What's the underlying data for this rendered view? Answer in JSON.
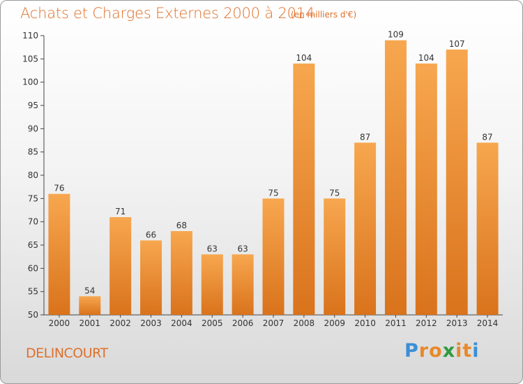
{
  "chart_data": {
    "type": "bar",
    "title": "Achats et Charges Externes 2000 à 2014",
    "subtitle": "(en milliers d'€)",
    "categories": [
      "2000",
      "2001",
      "2002",
      "2003",
      "2004",
      "2005",
      "2006",
      "2007",
      "2008",
      "2009",
      "2010",
      "2011",
      "2012",
      "2013",
      "2014"
    ],
    "values": [
      76,
      54,
      71,
      66,
      68,
      63,
      63,
      75,
      104,
      75,
      87,
      109,
      104,
      107,
      87
    ],
    "yticks": [
      50,
      55,
      60,
      65,
      70,
      75,
      80,
      85,
      90,
      95,
      100,
      105,
      110
    ],
    "ylim": [
      50,
      110
    ],
    "grid": false,
    "legend": "none",
    "colors": {
      "bar_light": "#f7a74f",
      "bar_dark": "#d9731c",
      "text": "#e0702a",
      "axis": "#444444"
    }
  },
  "place_name": "DELINCOURT",
  "brand": {
    "letters": [
      "P",
      "r",
      "o",
      "x",
      "i",
      "t",
      "i"
    ],
    "colors": [
      "#3a8fd6",
      "#e8892a",
      "#e8892a",
      "#2e9a3c",
      "#e8892a",
      "#e8892a",
      "#3a8fd6"
    ]
  }
}
